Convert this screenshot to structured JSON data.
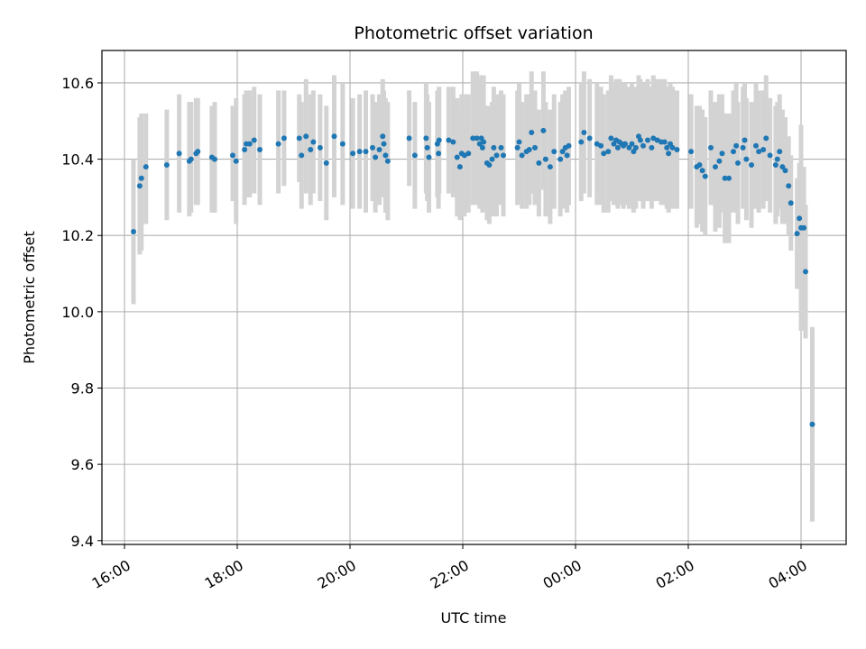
{
  "chart_data": {
    "type": "scatter",
    "title": "Photometric offset variation",
    "xlabel": "UTC time",
    "ylabel": "Photometric offset",
    "x_axis": "time (hours, continuing past midnight)",
    "xlim": [
      15.6,
      28.8
    ],
    "ylim": [
      9.39,
      10.685
    ],
    "grid": true,
    "legend": "none",
    "x_ticks": [
      {
        "value": 16,
        "label": "16:00"
      },
      {
        "value": 18,
        "label": "18:00"
      },
      {
        "value": 20,
        "label": "20:00"
      },
      {
        "value": 22,
        "label": "22:00"
      },
      {
        "value": 24,
        "label": "00:00"
      },
      {
        "value": 26,
        "label": "02:00"
      },
      {
        "value": 28,
        "label": "04:00"
      }
    ],
    "y_ticks": [
      {
        "value": 9.4,
        "label": "9.4"
      },
      {
        "value": 9.6,
        "label": "9.6"
      },
      {
        "value": 9.8,
        "label": "9.8"
      },
      {
        "value": 10.0,
        "label": "10.0"
      },
      {
        "value": 10.2,
        "label": "10.2"
      },
      {
        "value": 10.4,
        "label": "10.4"
      },
      {
        "value": 10.6,
        "label": "10.6"
      }
    ],
    "colors": {
      "point": "#1f77b4",
      "errorbar": "#d3d3d3",
      "grid": "#b0b0b0"
    },
    "series": [
      {
        "points": [
          [
            16.16,
            10.21,
            10.02,
            10.4
          ],
          [
            16.27,
            10.33,
            10.15,
            10.51
          ],
          [
            16.3,
            10.35,
            10.16,
            10.52
          ],
          [
            16.38,
            10.38,
            10.23,
            10.52
          ],
          [
            16.75,
            10.385,
            10.24,
            10.53
          ],
          [
            16.97,
            10.415,
            10.26,
            10.57
          ],
          [
            17.15,
            10.395,
            10.25,
            10.55
          ],
          [
            17.18,
            10.4,
            10.26,
            10.55
          ],
          [
            17.27,
            10.415,
            10.28,
            10.56
          ],
          [
            17.3,
            10.42,
            10.28,
            10.56
          ],
          [
            17.55,
            10.405,
            10.26,
            10.54
          ],
          [
            17.6,
            10.4,
            10.26,
            10.55
          ],
          [
            17.92,
            10.41,
            10.29,
            10.54
          ],
          [
            17.98,
            10.395,
            10.23,
            10.56
          ],
          [
            18.13,
            10.425,
            10.28,
            10.57
          ],
          [
            18.16,
            10.44,
            10.3,
            10.58
          ],
          [
            18.22,
            10.44,
            10.3,
            10.58
          ],
          [
            18.3,
            10.45,
            10.31,
            10.59
          ],
          [
            18.4,
            10.425,
            10.28,
            10.57
          ],
          [
            18.73,
            10.44,
            10.31,
            10.58
          ],
          [
            18.83,
            10.455,
            10.33,
            10.58
          ],
          [
            19.1,
            10.455,
            10.34,
            10.57
          ],
          [
            19.14,
            10.41,
            10.27,
            10.55
          ],
          [
            19.22,
            10.46,
            10.31,
            10.61
          ],
          [
            19.3,
            10.425,
            10.28,
            10.57
          ],
          [
            19.35,
            10.445,
            10.31,
            10.58
          ],
          [
            19.47,
            10.43,
            10.29,
            10.57
          ],
          [
            19.58,
            10.39,
            10.24,
            10.54
          ],
          [
            19.72,
            10.46,
            10.3,
            10.62
          ],
          [
            19.87,
            10.44,
            10.28,
            10.6
          ],
          [
            20.05,
            10.415,
            10.27,
            10.56
          ],
          [
            20.17,
            10.42,
            10.27,
            10.57
          ],
          [
            20.28,
            10.42,
            10.26,
            10.58
          ],
          [
            20.4,
            10.43,
            10.29,
            10.57
          ],
          [
            20.45,
            10.405,
            10.26,
            10.55
          ],
          [
            20.52,
            10.425,
            10.28,
            10.57
          ],
          [
            20.58,
            10.46,
            10.31,
            10.61
          ],
          [
            20.6,
            10.44,
            10.3,
            10.58
          ],
          [
            20.63,
            10.41,
            10.26,
            10.56
          ],
          [
            20.67,
            10.395,
            10.24,
            10.55
          ],
          [
            21.05,
            10.455,
            10.33,
            10.58
          ],
          [
            21.15,
            10.41,
            10.27,
            10.55
          ],
          [
            21.35,
            10.455,
            10.31,
            10.6
          ],
          [
            21.37,
            10.43,
            10.29,
            10.57
          ],
          [
            21.4,
            10.405,
            10.26,
            10.55
          ],
          [
            21.55,
            10.44,
            10.3,
            10.58
          ],
          [
            21.57,
            10.415,
            10.27,
            10.56
          ],
          [
            21.58,
            10.45,
            10.31,
            10.59
          ],
          [
            21.75,
            10.45,
            10.31,
            10.59
          ],
          [
            21.83,
            10.445,
            10.3,
            10.59
          ],
          [
            21.9,
            10.405,
            10.25,
            10.56
          ],
          [
            21.95,
            10.38,
            10.24,
            10.52
          ],
          [
            21.98,
            10.415,
            10.26,
            10.57
          ],
          [
            22.03,
            10.41,
            10.25,
            10.57
          ],
          [
            22.1,
            10.415,
            10.26,
            10.57
          ],
          [
            22.18,
            10.455,
            10.28,
            10.63
          ],
          [
            22.25,
            10.455,
            10.28,
            10.63
          ],
          [
            22.3,
            10.44,
            10.27,
            10.61
          ],
          [
            22.33,
            10.455,
            10.29,
            10.62
          ],
          [
            22.35,
            10.43,
            10.26,
            10.6
          ],
          [
            22.37,
            10.445,
            10.27,
            10.62
          ],
          [
            22.43,
            10.39,
            10.24,
            10.54
          ],
          [
            22.47,
            10.385,
            10.23,
            10.54
          ],
          [
            22.52,
            10.4,
            10.25,
            10.55
          ],
          [
            22.55,
            10.43,
            10.27,
            10.59
          ],
          [
            22.6,
            10.41,
            10.25,
            10.57
          ],
          [
            22.68,
            10.43,
            10.28,
            10.58
          ],
          [
            22.72,
            10.41,
            10.25,
            10.57
          ],
          [
            22.97,
            10.43,
            10.28,
            10.58
          ],
          [
            23.0,
            10.445,
            10.29,
            10.6
          ],
          [
            23.05,
            10.41,
            10.27,
            10.55
          ],
          [
            23.13,
            10.42,
            10.27,
            10.57
          ],
          [
            23.18,
            10.425,
            10.28,
            10.57
          ],
          [
            23.22,
            10.47,
            10.31,
            10.63
          ],
          [
            23.28,
            10.43,
            10.28,
            10.58
          ],
          [
            23.35,
            10.39,
            10.25,
            10.53
          ],
          [
            23.43,
            10.475,
            10.32,
            10.63
          ],
          [
            23.47,
            10.4,
            10.25,
            10.55
          ],
          [
            23.55,
            10.38,
            10.23,
            10.53
          ],
          [
            23.62,
            10.42,
            10.27,
            10.57
          ],
          [
            23.73,
            10.4,
            10.25,
            10.55
          ],
          [
            23.77,
            10.42,
            10.27,
            10.57
          ],
          [
            23.82,
            10.43,
            10.28,
            10.58
          ],
          [
            23.85,
            10.41,
            10.26,
            10.56
          ],
          [
            23.88,
            10.435,
            10.28,
            10.59
          ],
          [
            24.1,
            10.445,
            10.29,
            10.6
          ],
          [
            24.15,
            10.47,
            10.31,
            10.63
          ],
          [
            24.25,
            10.455,
            10.3,
            10.61
          ],
          [
            24.38,
            10.44,
            10.28,
            10.6
          ],
          [
            24.45,
            10.435,
            10.28,
            10.59
          ],
          [
            24.5,
            10.415,
            10.26,
            10.57
          ],
          [
            24.58,
            10.42,
            10.26,
            10.58
          ],
          [
            24.63,
            10.455,
            10.29,
            10.62
          ],
          [
            24.68,
            10.44,
            10.28,
            10.6
          ],
          [
            24.72,
            10.45,
            10.29,
            10.61
          ],
          [
            24.75,
            10.43,
            10.27,
            10.59
          ],
          [
            24.78,
            10.445,
            10.28,
            10.61
          ],
          [
            24.82,
            10.44,
            10.28,
            10.6
          ],
          [
            24.85,
            10.435,
            10.27,
            10.6
          ],
          [
            24.88,
            10.44,
            10.28,
            10.6
          ],
          [
            24.95,
            10.43,
            10.27,
            10.59
          ],
          [
            25.0,
            10.44,
            10.28,
            10.6
          ],
          [
            25.03,
            10.42,
            10.26,
            10.58
          ],
          [
            25.07,
            10.43,
            10.27,
            10.59
          ],
          [
            25.12,
            10.46,
            10.3,
            10.62
          ],
          [
            25.15,
            10.45,
            10.29,
            10.61
          ],
          [
            25.2,
            10.435,
            10.27,
            10.6
          ],
          [
            25.28,
            10.45,
            10.29,
            10.61
          ],
          [
            25.35,
            10.43,
            10.27,
            10.59
          ],
          [
            25.38,
            10.455,
            10.29,
            10.62
          ],
          [
            25.45,
            10.45,
            10.29,
            10.61
          ],
          [
            25.52,
            10.445,
            10.28,
            10.61
          ],
          [
            25.58,
            10.445,
            10.28,
            10.61
          ],
          [
            25.62,
            10.43,
            10.27,
            10.59
          ],
          [
            25.65,
            10.415,
            10.26,
            10.57
          ],
          [
            25.68,
            10.44,
            10.28,
            10.6
          ],
          [
            25.72,
            10.43,
            10.27,
            10.59
          ],
          [
            25.8,
            10.425,
            10.27,
            10.58
          ],
          [
            26.05,
            10.42,
            10.27,
            10.57
          ],
          [
            26.15,
            10.38,
            10.22,
            10.54
          ],
          [
            26.2,
            10.385,
            10.23,
            10.54
          ],
          [
            26.25,
            10.37,
            10.21,
            10.53
          ],
          [
            26.3,
            10.355,
            10.2,
            10.51
          ],
          [
            26.4,
            10.43,
            10.28,
            10.58
          ],
          [
            26.48,
            10.38,
            10.21,
            10.55
          ],
          [
            26.55,
            10.395,
            10.22,
            10.57
          ],
          [
            26.6,
            10.415,
            10.26,
            10.57
          ],
          [
            26.65,
            10.35,
            10.18,
            10.52
          ],
          [
            26.72,
            10.35,
            10.18,
            10.52
          ],
          [
            26.8,
            10.42,
            10.26,
            10.58
          ],
          [
            26.85,
            10.435,
            10.27,
            10.6
          ],
          [
            26.88,
            10.39,
            10.23,
            10.55
          ],
          [
            26.97,
            10.43,
            10.27,
            10.59
          ],
          [
            27.0,
            10.45,
            10.3,
            10.6
          ],
          [
            27.03,
            10.4,
            10.24,
            10.56
          ],
          [
            27.12,
            10.385,
            10.22,
            10.55
          ],
          [
            27.2,
            10.435,
            10.27,
            10.6
          ],
          [
            27.25,
            10.42,
            10.26,
            10.58
          ],
          [
            27.33,
            10.425,
            10.27,
            10.58
          ],
          [
            27.38,
            10.455,
            10.29,
            10.62
          ],
          [
            27.45,
            10.41,
            10.26,
            10.56
          ],
          [
            27.55,
            10.385,
            10.23,
            10.54
          ],
          [
            27.58,
            10.4,
            10.25,
            10.55
          ],
          [
            27.62,
            10.42,
            10.27,
            10.57
          ],
          [
            27.67,
            10.38,
            10.23,
            10.53
          ],
          [
            27.72,
            10.37,
            10.23,
            10.51
          ],
          [
            27.78,
            10.33,
            10.2,
            10.46
          ],
          [
            27.82,
            10.285,
            10.16,
            10.41
          ],
          [
            27.93,
            10.205,
            10.06,
            10.35
          ],
          [
            27.97,
            10.245,
            10.1,
            10.39
          ],
          [
            28.0,
            10.22,
            9.95,
            10.49
          ],
          [
            28.05,
            10.22,
            10.06,
            10.38
          ],
          [
            28.08,
            10.105,
            9.93,
            10.28
          ],
          [
            28.2,
            9.705,
            9.45,
            9.96
          ]
        ]
      }
    ]
  }
}
